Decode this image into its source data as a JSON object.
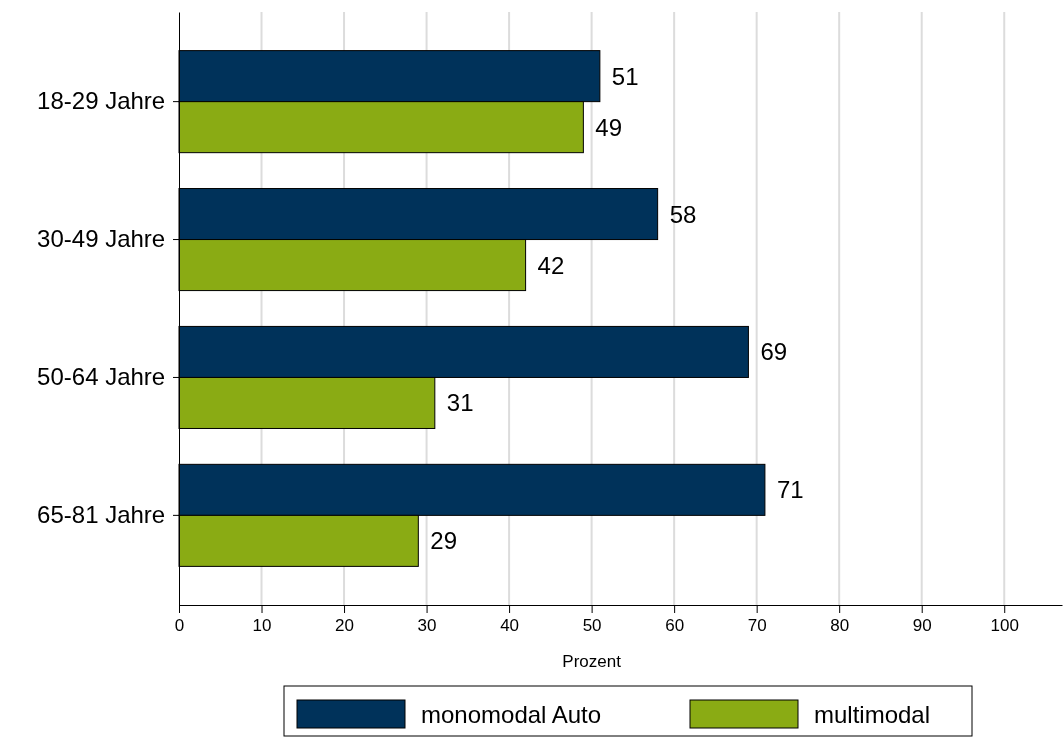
{
  "chart_data": {
    "type": "bar",
    "orientation": "horizontal",
    "xlabel": "Prozent",
    "categories": [
      "18-29 Jahre",
      "30-49 Jahre",
      "50-64 Jahre",
      "65-81 Jahre"
    ],
    "series": [
      {
        "name": "monomodal Auto",
        "color": "#00325a",
        "values": [
          51,
          58,
          69,
          71
        ]
      },
      {
        "name": "multimodal",
        "color": "#8aab14",
        "values": [
          49,
          42,
          31,
          29
        ]
      }
    ],
    "xlim": [
      0,
      107
    ],
    "xticks": [
      0,
      10,
      20,
      30,
      40,
      50,
      60,
      70,
      80,
      90,
      100
    ],
    "grid": "x",
    "legend": "bottom",
    "data_labels": true
  }
}
